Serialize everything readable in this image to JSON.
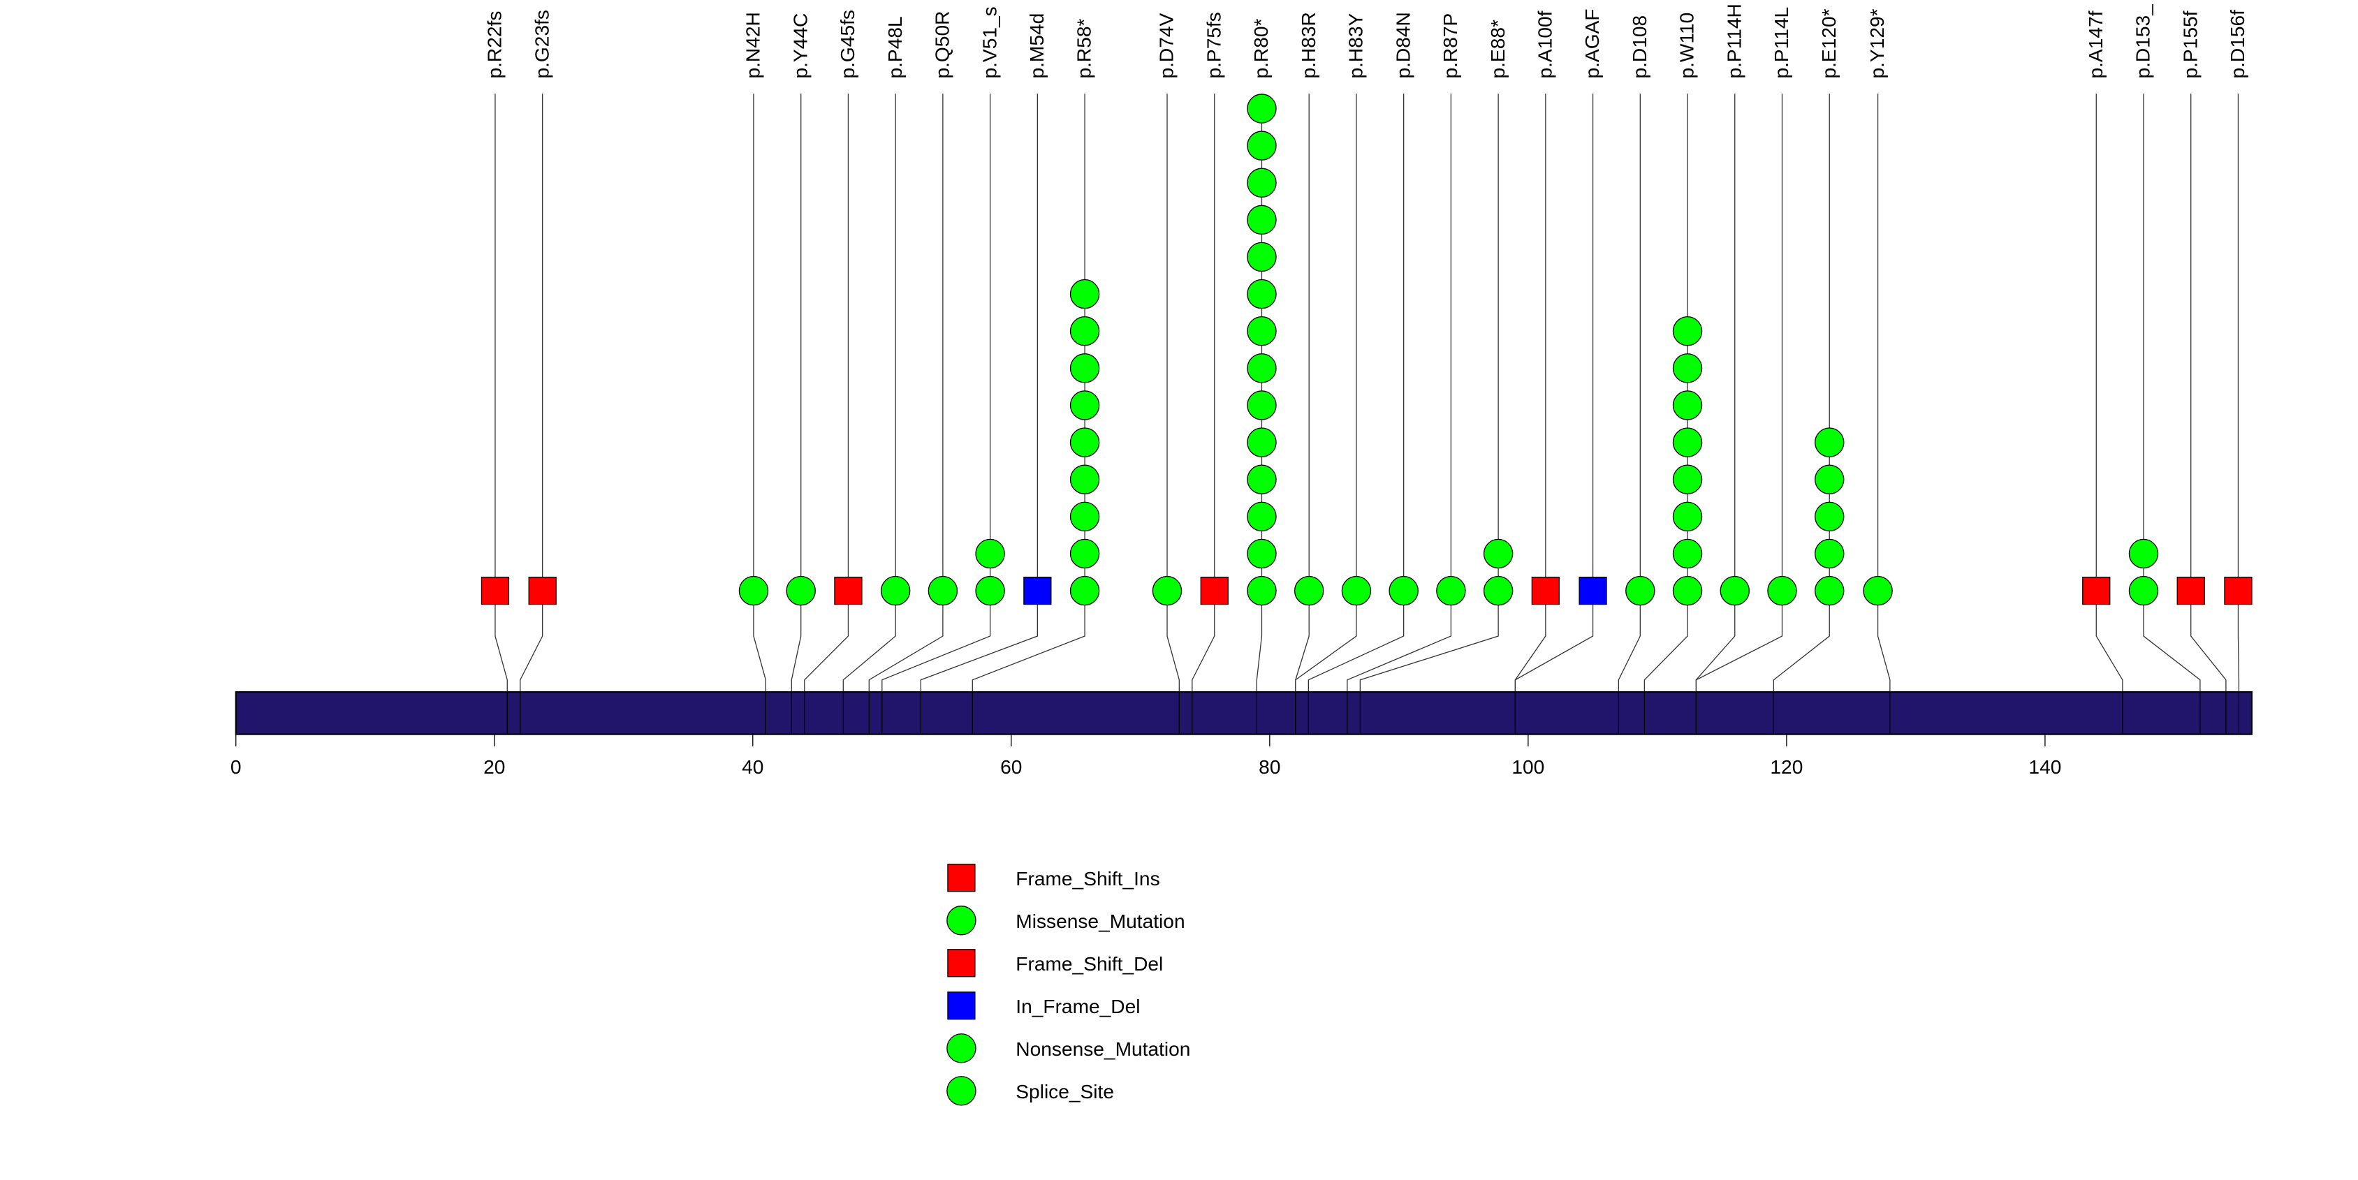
{
  "chart_data": {
    "type": "lollipop",
    "protein_length": 156,
    "xlim": [
      0,
      156
    ],
    "x_ticks": [
      0,
      20,
      40,
      60,
      80,
      100,
      120,
      140
    ],
    "colors": {
      "domain_bar": "#21156b",
      "frame_shift": "#ff0000",
      "missense": "#00ff00",
      "in_frame_del": "#0000ff"
    },
    "mutations": [
      {
        "label": "p.R22fs",
        "position": 22,
        "count": 1,
        "type": "Frame_Shift"
      },
      {
        "label": "p.G23fs",
        "position": 23,
        "count": 1,
        "type": "Frame_Shift"
      },
      {
        "label": "p.N42H",
        "position": 42,
        "count": 1,
        "type": "Missense_Mutation"
      },
      {
        "label": "p.Y44C",
        "position": 44,
        "count": 1,
        "type": "Missense_Mutation"
      },
      {
        "label": "p.G45fs",
        "position": 45,
        "count": 1,
        "type": "Frame_Shift"
      },
      {
        "label": "p.P48L",
        "position": 48,
        "count": 1,
        "type": "Missense_Mutation"
      },
      {
        "label": "p.Q50R",
        "position": 50,
        "count": 1,
        "type": "Missense_Mutation"
      },
      {
        "label": "p.V51_s",
        "position": 51,
        "count": 2,
        "type": "Splice_Site"
      },
      {
        "label": "p.M54d",
        "position": 54,
        "count": 1,
        "type": "In_Frame_Del"
      },
      {
        "label": "p.R58*",
        "position": 58,
        "count": 9,
        "type": "Nonsense_Mutation"
      },
      {
        "label": "p.D74V",
        "position": 74,
        "count": 1,
        "type": "Missense_Mutation"
      },
      {
        "label": "p.P75fs",
        "position": 75,
        "count": 1,
        "type": "Frame_Shift"
      },
      {
        "label": "p.R80*",
        "position": 80,
        "count": 14,
        "type": "Nonsense_Mutation"
      },
      {
        "label": "p.H83R",
        "position": 83,
        "count": 1,
        "type": "Missense_Mutation"
      },
      {
        "label": "p.H83Y",
        "position": 83,
        "count": 1,
        "type": "Missense_Mutation"
      },
      {
        "label": "p.D84N",
        "position": 84,
        "count": 1,
        "type": "Missense_Mutation"
      },
      {
        "label": "p.R87P",
        "position": 87,
        "count": 1,
        "type": "Missense_Mutation"
      },
      {
        "label": "p.E88*",
        "position": 88,
        "count": 2,
        "type": "Nonsense_Mutation"
      },
      {
        "label": "p.A100f",
        "position": 100,
        "count": 1,
        "type": "Frame_Shift"
      },
      {
        "label": "p.AGAF",
        "position": 100,
        "count": 1,
        "type": "In_Frame_Del"
      },
      {
        "label": "p.D108",
        "position": 108,
        "count": 1,
        "type": "Missense_Mutation"
      },
      {
        "label": "p.W110",
        "position": 110,
        "count": 8,
        "type": "Nonsense_Mutation"
      },
      {
        "label": "p.P114H",
        "position": 114,
        "count": 1,
        "type": "Missense_Mutation"
      },
      {
        "label": "p.P114L",
        "position": 114,
        "count": 1,
        "type": "Missense_Mutation"
      },
      {
        "label": "p.E120*",
        "position": 120,
        "count": 5,
        "type": "Nonsense_Mutation"
      },
      {
        "label": "p.Y129*",
        "position": 129,
        "count": 1,
        "type": "Nonsense_Mutation"
      },
      {
        "label": "p.A147f",
        "position": 147,
        "count": 1,
        "type": "Frame_Shift"
      },
      {
        "label": "p.D153_",
        "position": 153,
        "count": 2,
        "type": "Splice_Site"
      },
      {
        "label": "p.P155f",
        "position": 155,
        "count": 1,
        "type": "Frame_Shift"
      },
      {
        "label": "p.D156f",
        "position": 156,
        "count": 1,
        "type": "Frame_Shift"
      }
    ],
    "legend": [
      {
        "label": "Frame_Shift_Ins",
        "shape": "square",
        "color": "#ff0000"
      },
      {
        "label": "Missense_Mutation",
        "shape": "circle",
        "color": "#00ff00"
      },
      {
        "label": "Frame_Shift_Del",
        "shape": "square",
        "color": "#ff0000"
      },
      {
        "label": "In_Frame_Del",
        "shape": "square",
        "color": "#0000ff"
      },
      {
        "label": "Nonsense_Mutation",
        "shape": "circle",
        "color": "#00ff00"
      },
      {
        "label": "Splice_Site",
        "shape": "circle",
        "color": "#00ff00"
      }
    ]
  }
}
